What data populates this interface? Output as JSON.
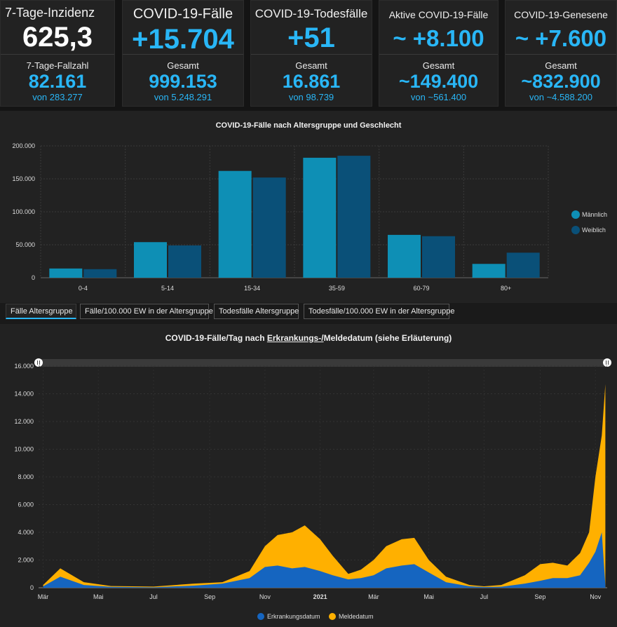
{
  "cards": [
    {
      "title": "7-Tage-Inzidenz",
      "big": "625,3",
      "label": "7-Tage-Fallzahl",
      "value": "82.161",
      "sub": "von 283.277"
    },
    {
      "title": "COVID-19-Fälle",
      "big": "+15.704",
      "label": "Gesamt",
      "value": "999.153",
      "sub": "von 5.248.291"
    },
    {
      "title": "COVID-19-Todesfälle",
      "big": "+51",
      "label": "Gesamt",
      "value": "16.861",
      "sub": "von 98.739"
    },
    {
      "title": "Aktive COVID-19-Fälle",
      "big": "~ +8.100",
      "label": "Gesamt",
      "value": "~149.400",
      "sub": "von ~561.400"
    },
    {
      "title": "COVID-19-Genesene",
      "big": "~ +7.600",
      "label": "Gesamt",
      "value": "~832.900",
      "sub": "von ~4.588.200"
    }
  ],
  "colors": {
    "accent": "#29b6f6",
    "male": "#0e8fb5",
    "female": "#0a5078",
    "erkrankung": "#1565c0",
    "melde": "#ffb000"
  },
  "age_chart": {
    "title": "COVID-19-Fälle nach Altersgruppe und Geschlecht",
    "yticks": [
      "0",
      "50.000",
      "100.000",
      "150.000",
      "200.000"
    ],
    "legend": [
      "Männlich",
      "Weiblich"
    ]
  },
  "tabs": [
    "Fälle Altersgruppe",
    "Fälle/100.000 EW in der Altersgruppe",
    "Todesfälle Altersgruppe",
    "Todesfälle/100.000 EW in der Altersgruppe"
  ],
  "daily_chart": {
    "title_before": "COVID-19-Fälle/Tag nach ",
    "title_link": "Erkrankungs-/",
    "title_after": "Meldedatum (siehe Erläuterung)",
    "yticks": [
      "0",
      "2.000",
      "4.000",
      "6.000",
      "8.000",
      "10.000",
      "12.000",
      "14.000",
      "16.000"
    ],
    "xticks": [
      "Mär",
      "Mai",
      "Jul",
      "Sep",
      "Nov",
      "2021",
      "Mär",
      "Mai",
      "Jul",
      "Sep",
      "Nov"
    ],
    "legend": [
      "Erkrankungsdatum",
      "Meldedatum"
    ]
  },
  "chart_data": [
    {
      "type": "bar",
      "title": "COVID-19-Fälle nach Altersgruppe und Geschlecht",
      "categories": [
        "0-4",
        "5-14",
        "15-34",
        "35-59",
        "60-79",
        "80+"
      ],
      "series": [
        {
          "name": "Männlich",
          "values": [
            14000,
            54000,
            162000,
            182000,
            65000,
            21000
          ]
        },
        {
          "name": "Weiblich",
          "values": [
            13000,
            49000,
            152000,
            185000,
            63000,
            38000
          ]
        }
      ],
      "ylim": [
        0,
        200000
      ],
      "legend": "right"
    },
    {
      "type": "area",
      "title": "COVID-19-Fälle/Tag nach Erkrankungs-/Meldedatum (siehe Erläuterung)",
      "x": [
        "2020-03-01",
        "2020-03-20",
        "2020-04-15",
        "2020-05-15",
        "2020-07-01",
        "2020-08-15",
        "2020-09-15",
        "2020-10-15",
        "2020-11-01",
        "2020-11-15",
        "2020-12-01",
        "2020-12-15",
        "2021-01-01",
        "2021-01-15",
        "2021-02-01",
        "2021-02-15",
        "2021-03-01",
        "2021-03-15",
        "2021-04-01",
        "2021-04-15",
        "2021-05-01",
        "2021-05-20",
        "2021-06-15",
        "2021-07-01",
        "2021-07-20",
        "2021-08-15",
        "2021-09-01",
        "2021-09-15",
        "2021-10-01",
        "2021-10-15",
        "2021-10-25",
        "2021-11-01",
        "2021-11-08",
        "2021-11-12"
      ],
      "series": [
        {
          "name": "Erkrankungsdatum",
          "values": [
            100,
            800,
            200,
            60,
            30,
            150,
            300,
            700,
            1500,
            1600,
            1400,
            1500,
            1200,
            900,
            600,
            700,
            900,
            1400,
            1600,
            1700,
            1100,
            400,
            100,
            50,
            70,
            300,
            500,
            700,
            700,
            900,
            1800,
            2600,
            4000,
            200
          ]
        },
        {
          "name": "Meldedatum",
          "values": [
            200,
            1400,
            400,
            120,
            80,
            300,
            400,
            1200,
            3000,
            3800,
            4000,
            4500,
            3500,
            2300,
            1000,
            1300,
            2000,
            3000,
            3500,
            3600,
            2000,
            800,
            200,
            100,
            200,
            900,
            1700,
            1800,
            1600,
            2500,
            4000,
            8000,
            11000,
            14700
          ]
        }
      ],
      "ylim": [
        0,
        16000
      ],
      "legend": "bottom"
    }
  ]
}
